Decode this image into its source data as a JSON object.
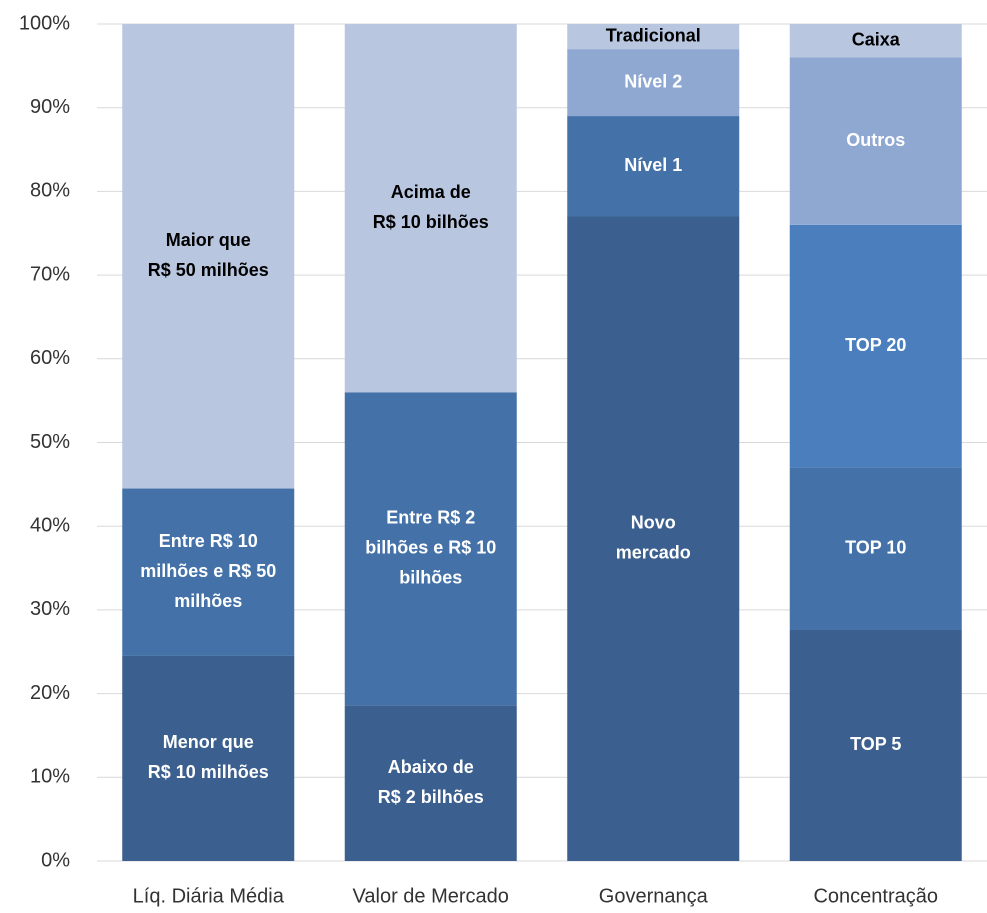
{
  "chart_data": {
    "type": "stacked_bar",
    "ylim": [
      0,
      100
    ],
    "yticks": [
      {
        "value": 0,
        "label": "0%"
      },
      {
        "value": 10,
        "label": "10%"
      },
      {
        "value": 20,
        "label": "20%"
      },
      {
        "value": 30,
        "label": "30%"
      },
      {
        "value": 40,
        "label": "40%"
      },
      {
        "value": 50,
        "label": "50%"
      },
      {
        "value": 60,
        "label": "60%"
      },
      {
        "value": 70,
        "label": "70%"
      },
      {
        "value": 80,
        "label": "80%"
      },
      {
        "value": 90,
        "label": "90%"
      },
      {
        "value": 100,
        "label": "100%"
      }
    ],
    "grid": true,
    "categories": [
      "Líq. Diária Média",
      "Valor de Mercado",
      "Governança",
      "Concentração"
    ],
    "bars": [
      {
        "segments": [
          {
            "label": [
              "Menor que",
              "R$ 10 milhões"
            ],
            "value": 24.5,
            "color": "#3b5f8e",
            "text_color": "#ffffff"
          },
          {
            "label": [
              "Entre R$ 10",
              "milhões e R$ 50",
              "milhões"
            ],
            "value": 20,
            "color": "#4472a8",
            "text_color": "#ffffff"
          },
          {
            "label": [
              "Maior que",
              "R$ 50 milhões"
            ],
            "value": 55.5,
            "color": "#b9c6e0",
            "text_color": "#000000"
          }
        ]
      },
      {
        "segments": [
          {
            "label": [
              "Abaixo de",
              "R$ 2 bilhões"
            ],
            "value": 18.6,
            "color": "#3b5f8e",
            "text_color": "#ffffff"
          },
          {
            "label": [
              "Entre R$ 2",
              "bilhões e R$ 10",
              "bilhões"
            ],
            "value": 37.4,
            "color": "#4472a8",
            "text_color": "#ffffff"
          },
          {
            "label": [
              "Acima de",
              "R$ 10 bilhões"
            ],
            "value": 44,
            "color": "#b9c6e0",
            "text_color": "#000000"
          }
        ]
      },
      {
        "segments": [
          {
            "label": [
              "Novo",
              "mercado"
            ],
            "value": 77,
            "color": "#3b5f8e",
            "text_color": "#ffffff"
          },
          {
            "label": [
              "Nível 1"
            ],
            "value": 12,
            "color": "#4472a8",
            "text_color": "#ffffff"
          },
          {
            "label": [
              "Nível 2"
            ],
            "value": 8,
            "color": "#8fa8d2",
            "text_color": "#ffffff"
          },
          {
            "label": [
              "Tradicional"
            ],
            "value": 3,
            "color": "#b9c6e0",
            "text_color": "#000000"
          }
        ]
      },
      {
        "segments": [
          {
            "label": [
              "TOP 5"
            ],
            "value": 27.6,
            "color": "#3b5f8e",
            "text_color": "#ffffff"
          },
          {
            "label": [
              "TOP 10"
            ],
            "value": 19.4,
            "color": "#4472a8",
            "text_color": "#ffffff"
          },
          {
            "label": [
              "TOP 20"
            ],
            "value": 29,
            "color": "#4a7ebd",
            "text_color": "#ffffff"
          },
          {
            "label": [
              "Outros"
            ],
            "value": 20,
            "color": "#8fa8d2",
            "text_color": "#ffffff"
          },
          {
            "label": [
              "Caixa"
            ],
            "value": 4,
            "color": "#b9c6e0",
            "text_color": "#000000"
          }
        ]
      }
    ]
  }
}
